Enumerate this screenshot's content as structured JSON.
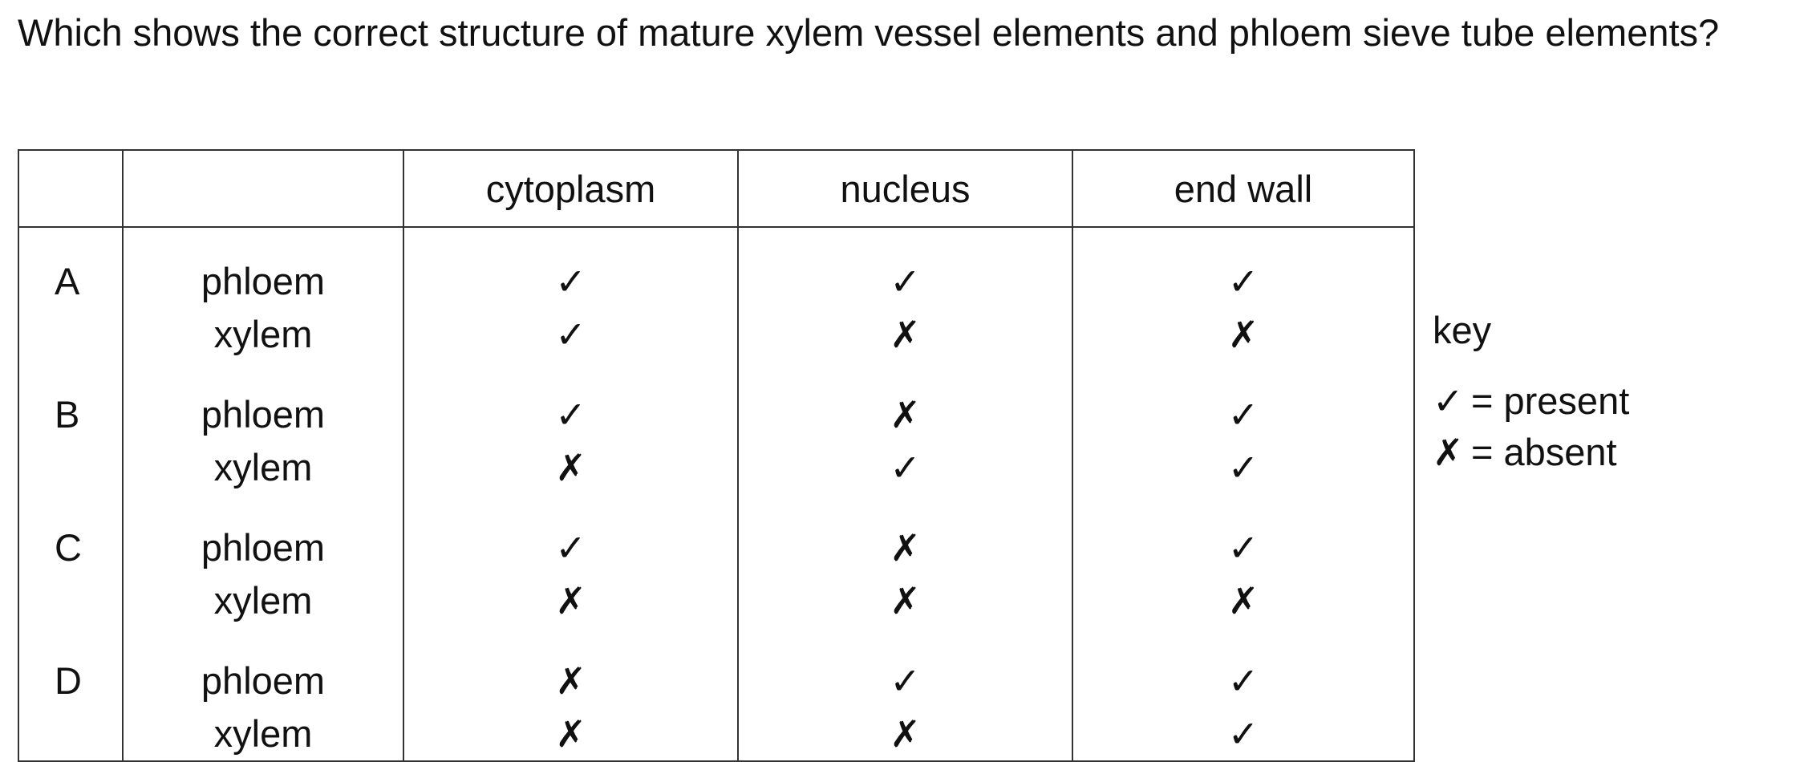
{
  "question": "Which shows the correct structure of mature xylem vessel elements and phloem sieve tube elements?",
  "table": {
    "headers": [
      "",
      "",
      "cytoplasm",
      "nucleus",
      "end wall"
    ],
    "rows": [
      {
        "letter": "A",
        "tissues": [
          "phloem",
          "xylem"
        ],
        "cytoplasm": [
          "✓",
          "✓"
        ],
        "nucleus": [
          "✓",
          "✗"
        ],
        "end_wall": [
          "✓",
          "✗"
        ]
      },
      {
        "letter": "B",
        "tissues": [
          "phloem",
          "xylem"
        ],
        "cytoplasm": [
          "✓",
          "✗"
        ],
        "nucleus": [
          "✗",
          "✓"
        ],
        "end_wall": [
          "✓",
          "✓"
        ]
      },
      {
        "letter": "C",
        "tissues": [
          "phloem",
          "xylem"
        ],
        "cytoplasm": [
          "✓",
          "✗"
        ],
        "nucleus": [
          "✗",
          "✗"
        ],
        "end_wall": [
          "✓",
          "✗"
        ]
      },
      {
        "letter": "D",
        "tissues": [
          "phloem",
          "xylem"
        ],
        "cytoplasm": [
          "✗",
          "✗"
        ],
        "nucleus": [
          "✓",
          "✗"
        ],
        "end_wall": [
          "✓",
          "✓"
        ]
      }
    ]
  },
  "key": {
    "title": "key",
    "present_symbol": "✓",
    "present_label": "= present",
    "absent_symbol": "✗",
    "absent_label": "= absent"
  }
}
